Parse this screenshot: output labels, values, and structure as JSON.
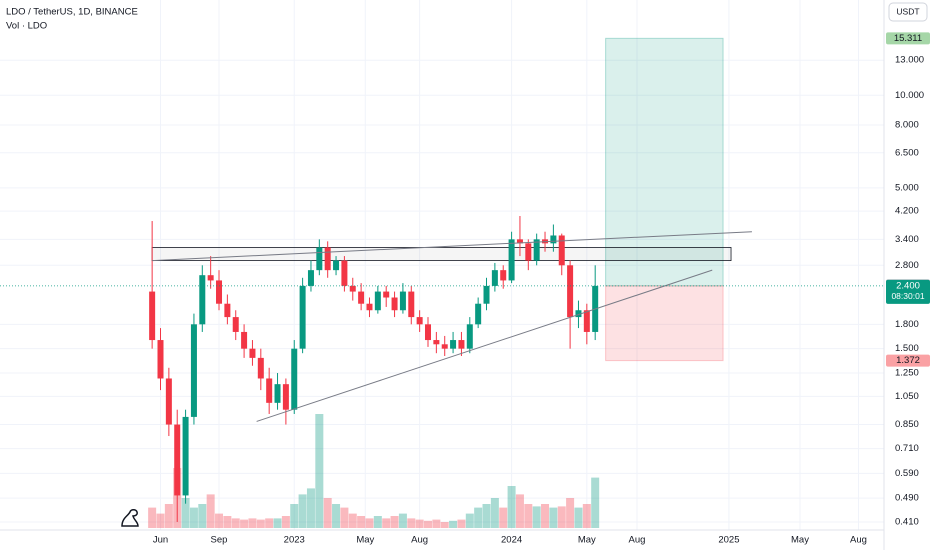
{
  "chart_data": {
    "type": "candlestick",
    "title": "LDO / TetherUS, 1D, BINANCE",
    "subtitle": "Vol · LDO",
    "currency": "USDT",
    "log_scale": true,
    "up_color": "#089981",
    "down_color": "#f23645",
    "x": [
      0,
      2,
      4,
      6,
      8,
      10,
      12,
      14,
      16,
      18,
      20,
      22,
      24,
      26,
      28,
      30,
      32,
      34,
      36,
      38,
      40,
      42,
      44,
      46,
      48,
      50,
      52,
      54,
      56,
      58,
      60,
      62,
      64,
      66,
      68,
      70,
      72,
      74,
      76,
      78,
      80,
      82,
      84,
      86,
      88,
      90,
      92,
      94,
      96,
      98,
      100,
      102,
      104,
      106
    ],
    "open": [
      2.3,
      1.6,
      1.2,
      0.85,
      0.5,
      0.9,
      1.8,
      2.6,
      2.5,
      2.1,
      1.9,
      1.7,
      1.5,
      1.4,
      1.2,
      1.0,
      1.15,
      0.95,
      1.5,
      2.4,
      2.7,
      3.2,
      2.7,
      2.9,
      2.4,
      2.3,
      2.1,
      2.0,
      2.3,
      2.2,
      2.0,
      2.3,
      1.9,
      1.8,
      1.6,
      1.55,
      1.5,
      1.6,
      1.5,
      1.8,
      2.1,
      2.4,
      2.7,
      2.5,
      3.4,
      3.3,
      2.9,
      3.4,
      3.3,
      3.5,
      2.8,
      1.9,
      2.0,
      1.7
    ],
    "high": [
      3.9,
      1.75,
      1.3,
      0.95,
      0.95,
      1.95,
      2.8,
      3.0,
      2.7,
      2.25,
      2.0,
      1.8,
      1.6,
      1.5,
      1.3,
      1.25,
      1.2,
      1.6,
      2.55,
      2.9,
      3.4,
      3.35,
      3.0,
      3.0,
      2.55,
      2.45,
      2.2,
      2.4,
      2.4,
      2.3,
      2.45,
      2.4,
      2.0,
      1.9,
      1.7,
      1.65,
      1.7,
      1.7,
      1.9,
      2.2,
      2.55,
      2.85,
      2.8,
      3.6,
      4.05,
      3.4,
      3.55,
      3.6,
      3.8,
      3.55,
      2.9,
      2.15,
      2.1,
      2.8
    ],
    "low": [
      1.5,
      1.1,
      0.78,
      0.41,
      0.47,
      0.85,
      1.7,
      2.35,
      2.0,
      1.8,
      1.6,
      1.4,
      1.32,
      1.1,
      0.92,
      0.95,
      0.85,
      0.92,
      1.45,
      2.3,
      2.6,
      2.55,
      2.6,
      2.3,
      2.15,
      2.0,
      1.9,
      1.95,
      2.05,
      1.9,
      1.95,
      1.8,
      1.7,
      1.52,
      1.45,
      1.42,
      1.45,
      1.42,
      1.45,
      1.75,
      2.0,
      2.3,
      2.35,
      2.45,
      3.0,
      2.7,
      2.8,
      3.1,
      3.1,
      2.6,
      1.5,
      1.75,
      1.55,
      1.6
    ],
    "close": [
      1.6,
      1.2,
      0.85,
      0.5,
      0.9,
      1.8,
      2.6,
      2.5,
      2.1,
      1.9,
      1.7,
      1.5,
      1.4,
      1.2,
      1.0,
      1.15,
      0.95,
      1.5,
      2.4,
      2.7,
      3.2,
      2.7,
      2.9,
      2.4,
      2.3,
      2.1,
      2.0,
      2.3,
      2.2,
      2.0,
      2.3,
      1.9,
      1.8,
      1.6,
      1.55,
      1.5,
      1.6,
      1.5,
      1.8,
      2.1,
      2.4,
      2.7,
      2.5,
      3.4,
      3.3,
      2.9,
      3.4,
      3.3,
      3.5,
      2.8,
      1.9,
      2.0,
      1.7,
      2.4
    ],
    "volume": [
      17,
      12,
      20,
      50,
      25,
      17,
      20,
      28,
      12,
      10,
      8,
      7,
      8,
      7,
      8,
      8,
      10,
      20,
      28,
      33,
      95,
      25,
      20,
      17,
      12,
      10,
      8,
      10,
      8,
      10,
      12,
      8,
      7,
      6,
      7,
      5,
      6,
      7,
      12,
      17,
      20,
      25,
      17,
      35,
      28,
      20,
      18,
      20,
      17,
      18,
      25,
      17,
      20,
      42
    ],
    "vlim": [
      0,
      100
    ],
    "xlim": [
      -36.4,
      175.1
    ],
    "xticks": [
      {
        "value": 2,
        "label": "Jun"
      },
      {
        "value": 16,
        "label": "Sep"
      },
      {
        "value": 34,
        "label": "2023"
      },
      {
        "value": 51,
        "label": "May"
      },
      {
        "value": 64,
        "label": "Aug"
      },
      {
        "value": 86,
        "label": "2024"
      },
      {
        "value": 104,
        "label": "May"
      },
      {
        "value": 116,
        "label": "Aug"
      },
      {
        "value": 138,
        "label": "2025"
      },
      {
        "value": 155,
        "label": "May"
      },
      {
        "value": 169,
        "label": "Aug"
      }
    ],
    "ylim": [
      0.386,
      20.4
    ],
    "yticks": [
      {
        "value": 13,
        "label": "13.000"
      },
      {
        "value": 10,
        "label": "10.000"
      },
      {
        "value": 8,
        "label": "8.000"
      },
      {
        "value": 6.5,
        "label": "6.500"
      },
      {
        "value": 5,
        "label": "5.000"
      },
      {
        "value": 4.2,
        "label": "4.200"
      },
      {
        "value": 3.4,
        "label": "3.400"
      },
      {
        "value": 2.8,
        "label": "2.800"
      },
      {
        "value": 1.8,
        "label": "1.800"
      },
      {
        "value": 1.5,
        "label": "1.500"
      },
      {
        "value": 1.25,
        "label": "1.250"
      },
      {
        "value": 1.05,
        "label": "1.050"
      },
      {
        "value": 0.85,
        "label": "0.850"
      },
      {
        "value": 0.71,
        "label": "0.710"
      },
      {
        "value": 0.59,
        "label": "0.590"
      },
      {
        "value": 0.49,
        "label": "0.490"
      },
      {
        "value": 0.41,
        "label": "0.410"
      }
    ],
    "position": {
      "x": [
        108.5,
        136.6
      ],
      "target": 15.311,
      "entry": {
        "value": 2.4,
        "label": "2.400"
      },
      "stop": 1.372
    },
    "prev_close": 2.409,
    "countdown": "08:30:01",
    "zone": {
      "x": [
        0,
        138.5
      ],
      "y": [
        2.9,
        3.2
      ]
    },
    "trendlines": [
      {
        "x": [
          25,
          134
        ],
        "y": [
          0.87,
          2.7
        ]
      },
      {
        "x": [
          0,
          143.5
        ],
        "y": [
          2.9,
          3.6
        ]
      }
    ]
  }
}
